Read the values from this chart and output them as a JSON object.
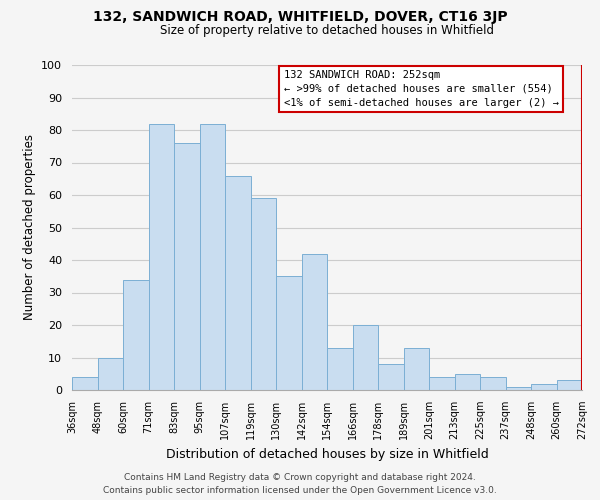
{
  "title": "132, SANDWICH ROAD, WHITFIELD, DOVER, CT16 3JP",
  "subtitle": "Size of property relative to detached houses in Whitfield",
  "xlabel": "Distribution of detached houses by size in Whitfield",
  "ylabel": "Number of detached properties",
  "bar_labels": [
    "36sqm",
    "48sqm",
    "60sqm",
    "71sqm",
    "83sqm",
    "95sqm",
    "107sqm",
    "119sqm",
    "130sqm",
    "142sqm",
    "154sqm",
    "166sqm",
    "178sqm",
    "189sqm",
    "201sqm",
    "213sqm",
    "225sqm",
    "237sqm",
    "248sqm",
    "260sqm",
    "272sqm"
  ],
  "bar_values": [
    4,
    10,
    34,
    82,
    76,
    82,
    66,
    59,
    35,
    42,
    13,
    20,
    8,
    13,
    4,
    5,
    4,
    1,
    2,
    3
  ],
  "bar_color": "#c9ddf0",
  "bar_edge_color": "#7bafd4",
  "grid_color": "#cccccc",
  "vline_color": "#cc0000",
  "legend_title": "132 SANDWICH ROAD: 252sqm",
  "legend_line1": "← >99% of detached houses are smaller (554)",
  "legend_line2": "<1% of semi-detached houses are larger (2) →",
  "footer_line1": "Contains HM Land Registry data © Crown copyright and database right 2024.",
  "footer_line2": "Contains public sector information licensed under the Open Government Licence v3.0.",
  "ylim": [
    0,
    100
  ],
  "background_color": "#f5f5f5"
}
